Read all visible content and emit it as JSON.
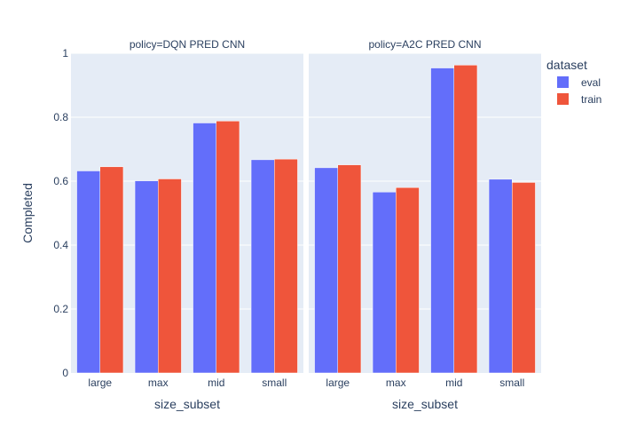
{
  "chart_data": {
    "type": "bar",
    "ylabel": "Completed",
    "xlabel": "size_subset",
    "ylim": [
      0,
      1
    ],
    "yticks": [
      0,
      0.2,
      0.4,
      0.6,
      0.8,
      1
    ],
    "ytick_labels": [
      "0",
      "0.2",
      "0.4",
      "0.6",
      "0.8",
      "1"
    ],
    "grid": true,
    "legend": {
      "title": "dataset",
      "placement": "top-right",
      "entries": [
        "eval",
        "train"
      ]
    },
    "colors": {
      "eval": "#636efa",
      "train": "#ef553b",
      "plot_bg": "#e5ecf6",
      "text": "#2a3f5f"
    },
    "panels": [
      {
        "title": "policy=DQN PRED CNN",
        "categories": [
          "large",
          "max",
          "mid",
          "small"
        ],
        "series": [
          {
            "name": "eval",
            "values": [
              0.632,
              0.601,
              0.782,
              0.667
            ]
          },
          {
            "name": "train",
            "values": [
              0.645,
              0.607,
              0.788,
              0.669
            ]
          }
        ]
      },
      {
        "title": "policy=A2C PRED CNN",
        "categories": [
          "large",
          "max",
          "mid",
          "small"
        ],
        "series": [
          {
            "name": "eval",
            "values": [
              0.642,
              0.566,
              0.954,
              0.606
            ]
          },
          {
            "name": "train",
            "values": [
              0.651,
              0.58,
              0.963,
              0.596
            ]
          }
        ]
      }
    ]
  }
}
